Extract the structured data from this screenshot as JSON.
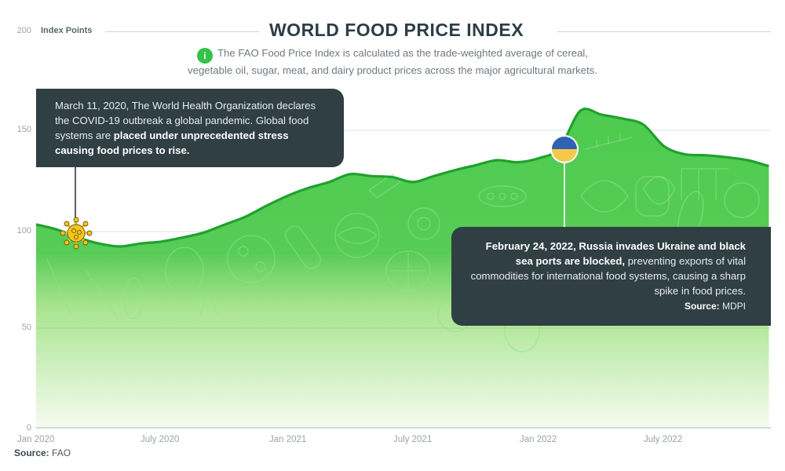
{
  "header": {
    "title": "WORLD FOOD PRICE INDEX",
    "subtitle_line1": "The FAO Food Price Index is calculated as the trade-weighted average of cereal,",
    "subtitle_line2": "vegetable oil, sugar, meat, and dairy product prices across the major agricultural markets.",
    "info_icon": "info-icon",
    "info_glyph": "i"
  },
  "y_axis": {
    "title": "Index Points",
    "ticks": [
      "200",
      "150",
      "100",
      "50",
      "0"
    ]
  },
  "x_axis": {
    "ticks": [
      "Jan 2020",
      "July 2020",
      "Jan 2021",
      "July 2021",
      "Jan 2022",
      "July 2022"
    ]
  },
  "callouts": {
    "covid": {
      "icon": "virus-icon",
      "text_regular": "March 11, 2020, The World Health Organization declares the COVID-19 outbreak a global pandemic. Global food systems are ",
      "text_bold": "placed under unprecedented stress causing food prices to rise."
    },
    "ukraine": {
      "icon": "ukraine-flag-icon",
      "text_bold": "February 24, 2022, Russia invades Ukraine and black sea ports are blocked,",
      "text_regular": " preventing exports of vital commodities for international food systems, causing a sharp spike in food prices.",
      "source_label": "Source:",
      "source_value": "MDPI"
    }
  },
  "footer": {
    "source_label": "Source:",
    "source_value": "FAO"
  },
  "colors": {
    "area_top": "#4ecb4f",
    "area_bottom": "#f5fbef",
    "line": "#1fa12d",
    "callout_bg": "#2f3f44",
    "title": "#2c3e45",
    "flag_blue": "#2f62b2",
    "flag_yellow": "#f6c84a",
    "virus": "#f6c51c"
  },
  "chart_data": {
    "type": "area",
    "title": "WORLD FOOD PRICE INDEX",
    "subtitle": "The FAO Food Price Index is calculated as the trade-weighted average of cereal, vegetable oil, sugar, meat, and dairy product prices across the major agricultural markets.",
    "xlabel": "",
    "ylabel": "Index Points",
    "ylim": [
      0,
      200
    ],
    "yticks": [
      0,
      50,
      100,
      150,
      200
    ],
    "xticks": [
      "Jan 2020",
      "July 2020",
      "Jan 2021",
      "July 2021",
      "Jan 2022",
      "July 2022"
    ],
    "grid": true,
    "legend": null,
    "x": [
      "2020-01",
      "2020-02",
      "2020-03",
      "2020-04",
      "2020-05",
      "2020-06",
      "2020-07",
      "2020-08",
      "2020-09",
      "2020-10",
      "2020-11",
      "2020-12",
      "2021-01",
      "2021-02",
      "2021-03",
      "2021-04",
      "2021-05",
      "2021-06",
      "2021-07",
      "2021-08",
      "2021-09",
      "2021-10",
      "2021-11",
      "2021-12",
      "2022-01",
      "2022-02",
      "2022-03",
      "2022-04",
      "2022-05",
      "2022-06",
      "2022-07",
      "2022-08",
      "2022-09",
      "2022-10",
      "2022-11",
      "2022-12"
    ],
    "series": [
      {
        "name": "FAO Food Price Index",
        "values": [
          102.6,
          100,
          96,
          93,
          91.5,
          93,
          94,
          96,
          98.5,
          102.5,
          106.5,
          112,
          117,
          121,
          124,
          128,
          127,
          126.5,
          124,
          127,
          130,
          132.5,
          135,
          134,
          136,
          141,
          160,
          158,
          156,
          153,
          142,
          138,
          137.5,
          136.5,
          135,
          132
        ]
      }
    ],
    "annotations": [
      {
        "x": "2020-03",
        "label": "March 11, 2020, WHO declares COVID-19 a global pandemic"
      },
      {
        "x": "2022-02",
        "label": "February 24, 2022, Russia invades Ukraine; black sea ports blocked"
      }
    ],
    "source": "FAO"
  }
}
